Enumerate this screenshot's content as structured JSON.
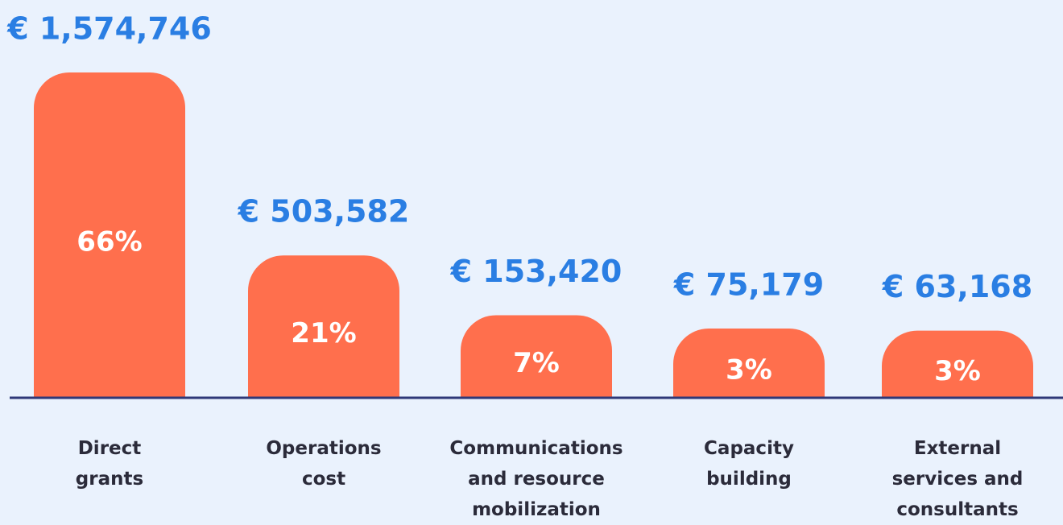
{
  "chart_data": {
    "type": "bar",
    "categories": [
      "Direct grants",
      "Operations cost",
      "Communications and resource mobilization",
      "Capacity building",
      "External services and consultants"
    ],
    "values": [
      1574746,
      503582,
      153420,
      75179,
      63168
    ],
    "value_labels": [
      "€ 1,574,746",
      "€ 503,582",
      "€ 153,420",
      "€ 75,179",
      "€ 63,168"
    ],
    "percentages": [
      66,
      21,
      7,
      3,
      3
    ],
    "percentage_labels": [
      "66%",
      "21%",
      "7%",
      "3%",
      "3%"
    ],
    "color": "#ff6f4d",
    "value_label_color": "#2a7ee3",
    "baseline_color": "#2e3878"
  }
}
